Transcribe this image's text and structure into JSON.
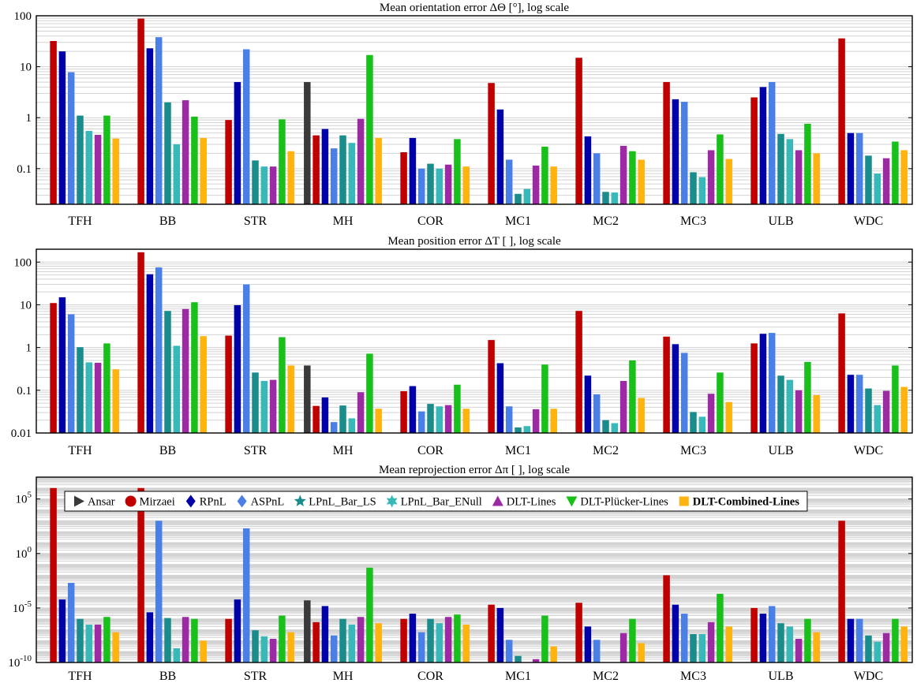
{
  "chart_data": [
    {
      "type": "bar",
      "title": "Mean orientation error ΔΘ [°], log scale",
      "yscale": "log",
      "ylim": [
        0.02,
        100
      ],
      "ytick_values": [
        0.1,
        1,
        10,
        100
      ],
      "ytick_labels": [
        "0.1",
        "1",
        "10",
        "100"
      ],
      "grid": true,
      "categories": [
        "TFH",
        "BB",
        "STR",
        "MH",
        "COR",
        "MC1",
        "MC2",
        "MC3",
        "ULB",
        "WDC"
      ],
      "series": [
        {
          "name": "Ansar",
          "values": [
            null,
            null,
            null,
            5.0,
            null,
            null,
            null,
            null,
            null,
            null
          ]
        },
        {
          "name": "Mirzaei",
          "values": [
            32,
            88,
            0.9,
            0.45,
            0.21,
            4.8,
            15,
            5.0,
            2.5,
            36
          ]
        },
        {
          "name": "RPnL",
          "values": [
            20,
            23,
            5.0,
            0.6,
            0.4,
            1.45,
            0.43,
            2.3,
            4.0,
            0.5
          ]
        },
        {
          "name": "ASPnL",
          "values": [
            7.8,
            38,
            22,
            0.25,
            0.1,
            0.15,
            0.2,
            2.05,
            5.0,
            0.5
          ]
        },
        {
          "name": "LPnL_Bar_LS",
          "values": [
            1.1,
            2.0,
            0.145,
            0.45,
            0.125,
            0.032,
            0.035,
            0.085,
            0.48,
            0.18
          ]
        },
        {
          "name": "LPnL_Bar_ENull",
          "values": [
            0.55,
            0.3,
            0.11,
            0.32,
            0.1,
            0.04,
            0.034,
            0.068,
            0.38,
            0.08
          ]
        },
        {
          "name": "DLT-Lines",
          "values": [
            0.46,
            2.2,
            0.11,
            0.95,
            0.12,
            0.115,
            0.28,
            0.23,
            0.23,
            0.16
          ]
        },
        {
          "name": "DLT-Plücker-Lines",
          "values": [
            1.1,
            1.05,
            0.93,
            17,
            0.38,
            0.27,
            0.22,
            0.47,
            0.76,
            0.34
          ]
        },
        {
          "name": "DLT-Combined-Lines",
          "values": [
            0.39,
            0.4,
            0.22,
            0.4,
            0.11,
            0.11,
            0.15,
            0.155,
            0.2,
            0.23
          ]
        }
      ]
    },
    {
      "type": "bar",
      "title": "Mean position error ΔT [ ], log scale",
      "yscale": "log",
      "ylim": [
        0.01,
        200
      ],
      "ytick_values": [
        0.01,
        0.1,
        1,
        10,
        100
      ],
      "ytick_labels": [
        "0.01",
        "0.1",
        "1",
        "10",
        "100"
      ],
      "grid": true,
      "categories": [
        "TFH",
        "BB",
        "STR",
        "MH",
        "COR",
        "MC1",
        "MC2",
        "MC3",
        "ULB",
        "WDC"
      ],
      "series": [
        {
          "name": "Ansar",
          "values": [
            null,
            null,
            null,
            0.38,
            null,
            null,
            null,
            null,
            null,
            null
          ]
        },
        {
          "name": "Mirzaei",
          "values": [
            11,
            170,
            1.9,
            0.043,
            0.095,
            1.5,
            7.2,
            1.8,
            1.25,
            6.3
          ]
        },
        {
          "name": "RPnL",
          "values": [
            15,
            52,
            9.8,
            0.068,
            0.125,
            0.43,
            0.22,
            1.2,
            2.1,
            0.23
          ]
        },
        {
          "name": "ASPnL",
          "values": [
            6.0,
            75,
            30,
            0.018,
            0.032,
            0.042,
            0.08,
            0.75,
            2.2,
            0.23
          ]
        },
        {
          "name": "LPnL_Bar_LS",
          "values": [
            1.02,
            7.2,
            0.26,
            0.044,
            0.048,
            0.0135,
            0.02,
            0.031,
            0.22,
            0.11
          ]
        },
        {
          "name": "LPnL_Bar_ENull",
          "values": [
            0.45,
            1.1,
            0.165,
            0.022,
            0.042,
            0.0145,
            0.017,
            0.024,
            0.175,
            0.045
          ]
        },
        {
          "name": "DLT-Lines",
          "values": [
            0.44,
            8.0,
            0.175,
            0.09,
            0.045,
            0.036,
            0.165,
            0.083,
            0.1,
            0.097
          ]
        },
        {
          "name": "DLT-Plücker-Lines",
          "values": [
            1.25,
            11.5,
            1.75,
            0.72,
            0.135,
            0.4,
            0.5,
            0.26,
            0.46,
            0.38
          ]
        },
        {
          "name": "DLT-Combined-Lines",
          "values": [
            0.31,
            1.85,
            0.38,
            0.037,
            0.037,
            0.037,
            0.066,
            0.053,
            0.077,
            0.12
          ]
        }
      ]
    },
    {
      "type": "bar",
      "title": "Mean reprojection error Δπ [ ], log scale",
      "yscale": "log",
      "ylim": [
        1e-10,
        10000000.0
      ],
      "ytick_values": [
        1e-10,
        1e-05,
        1,
        100000.0
      ],
      "ytick_labels": [
        {
          "base": "10",
          "exp": "-10"
        },
        {
          "base": "10",
          "exp": "-5"
        },
        {
          "base": "10",
          "exp": "0"
        },
        {
          "base": "10",
          "exp": "5"
        }
      ],
      "grid": true,
      "legend": "top",
      "categories": [
        "TFH",
        "BB",
        "STR",
        "MH",
        "COR",
        "MC1",
        "MC2",
        "MC3",
        "ULB",
        "WDC"
      ],
      "series": [
        {
          "name": "Ansar",
          "values": [
            null,
            null,
            null,
            5e-05,
            null,
            null,
            null,
            null,
            null,
            null
          ]
        },
        {
          "name": "Mirzaei",
          "values": [
            1000000.0,
            1000000.0,
            1e-06,
            5e-07,
            1e-06,
            2e-05,
            3e-05,
            0.01,
            1e-05,
            1000.0
          ]
        },
        {
          "name": "RPnL",
          "values": [
            6e-05,
            4e-06,
            6e-05,
            1.5e-05,
            3e-06,
            1e-05,
            2e-07,
            2e-05,
            3e-06,
            1e-06
          ]
        },
        {
          "name": "ASPnL",
          "values": [
            0.002,
            1000.0,
            200.0,
            3e-08,
            6e-08,
            1.2e-08,
            1.2e-08,
            3e-06,
            1.5e-05,
            1e-06
          ]
        },
        {
          "name": "LPnL_Bar_LS",
          "values": [
            1e-06,
            1.2e-06,
            9e-08,
            1e-06,
            1e-06,
            4e-10,
            4e-11,
            4e-08,
            4e-07,
            3e-08
          ]
        },
        {
          "name": "LPnL_Bar_ENull",
          "values": [
            3e-07,
            2e-09,
            2.5e-08,
            3e-07,
            4e-07,
            6e-11,
            2.5e-11,
            4e-08,
            2e-07,
            8e-09
          ]
        },
        {
          "name": "DLT-Lines",
          "values": [
            3e-07,
            1.5e-06,
            1.5e-08,
            1.5e-06,
            1.5e-06,
            2e-10,
            5e-08,
            5e-07,
            1.5e-08,
            5e-08
          ]
        },
        {
          "name": "DLT-Plücker-Lines",
          "values": [
            1.5e-06,
            1e-06,
            2e-06,
            0.05,
            2.5e-06,
            2e-06,
            1e-06,
            0.0002,
            1e-06,
            1e-06
          ]
        },
        {
          "name": "DLT-Combined-Lines",
          "values": [
            6e-08,
            1e-08,
            6e-08,
            4e-07,
            3e-07,
            3e-09,
            6e-09,
            2e-07,
            6e-08,
            2e-07
          ]
        }
      ]
    }
  ],
  "legend": {
    "items": [
      "Ansar",
      "Mirzaei",
      "RPnL",
      "ASPnL",
      "LPnL_Bar_LS",
      "LPnL_Bar_ENull",
      "DLT-Lines",
      "DLT-Plücker-Lines",
      "DLT-Combined-Lines"
    ],
    "markers": [
      "triangle-right",
      "circle",
      "diamond",
      "diamond",
      "star",
      "hexagram",
      "triangle-up",
      "triangle-down",
      "square"
    ],
    "bold_item": "DLT-Combined-Lines"
  },
  "colors": {
    "Ansar": "#3a3a3a",
    "Mirzaei": "#c00000",
    "RPnL": "#0000a8",
    "ASPnL": "#4a7fe6",
    "LPnL_Bar_LS": "#1a8c8c",
    "LPnL_Bar_ENull": "#38b8b8",
    "DLT-Lines": "#9b2aa3",
    "DLT-Plücker-Lines": "#19c01a",
    "DLT-Combined-Lines": "#ffb30f",
    "grid": "#d2d2d2",
    "axis": "#000000"
  }
}
